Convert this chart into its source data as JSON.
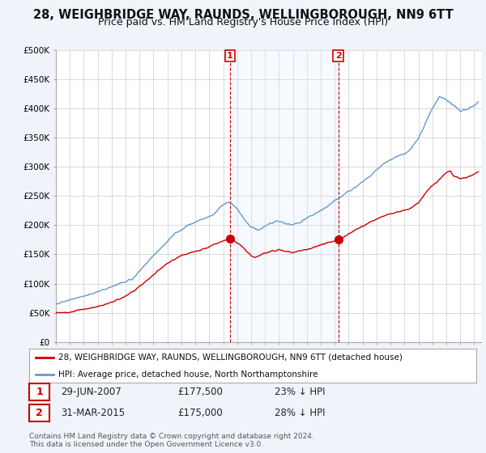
{
  "title": "28, WEIGHBRIDGE WAY, RAUNDS, WELLINGBOROUGH, NN9 6TT",
  "subtitle": "Price paid vs. HM Land Registry's House Price Index (HPI)",
  "title_fontsize": 10.5,
  "subtitle_fontsize": 9,
  "bg_color": "#f0f4fa",
  "plot_bg_color": "#ffffff",
  "red_line_label": "28, WEIGHBRIDGE WAY, RAUNDS, WELLINGBOROUGH, NN9 6TT (detached house)",
  "blue_line_label": "HPI: Average price, detached house, North Northamptonshire",
  "footnote": "Contains HM Land Registry data © Crown copyright and database right 2024.\nThis data is licensed under the Open Government Licence v3.0.",
  "annotation1": {
    "num": "1",
    "date": "29-JUN-2007",
    "price": "£177,500",
    "hpi": "23% ↓ HPI"
  },
  "annotation2": {
    "num": "2",
    "date": "31-MAR-2015",
    "price": "£175,000",
    "hpi": "28% ↓ HPI"
  },
  "ylim": [
    0,
    500000
  ],
  "yticks": [
    0,
    50000,
    100000,
    150000,
    200000,
    250000,
    300000,
    350000,
    400000,
    450000,
    500000
  ],
  "ytick_labels": [
    "£0",
    "£50K",
    "£100K",
    "£150K",
    "£200K",
    "£250K",
    "£300K",
    "£350K",
    "£400K",
    "£450K",
    "£500K"
  ],
  "x_start": 1995.0,
  "x_end": 2025.5,
  "xticks": [
    1995,
    1996,
    1997,
    1998,
    1999,
    2000,
    2001,
    2002,
    2003,
    2004,
    2005,
    2006,
    2007,
    2008,
    2009,
    2010,
    2011,
    2012,
    2013,
    2014,
    2015,
    2016,
    2017,
    2018,
    2019,
    2020,
    2021,
    2022,
    2023,
    2024,
    2025
  ],
  "red_color": "#cc0000",
  "blue_color": "#6699cc",
  "vline_color": "#cc0000",
  "shade_color": "#ddeeff",
  "dot1_x": 2007.49,
  "dot1_y": 177500,
  "dot2_x": 2015.25,
  "dot2_y": 175000,
  "grid_color": "#cccccc",
  "spine_color": "#aaaaaa"
}
